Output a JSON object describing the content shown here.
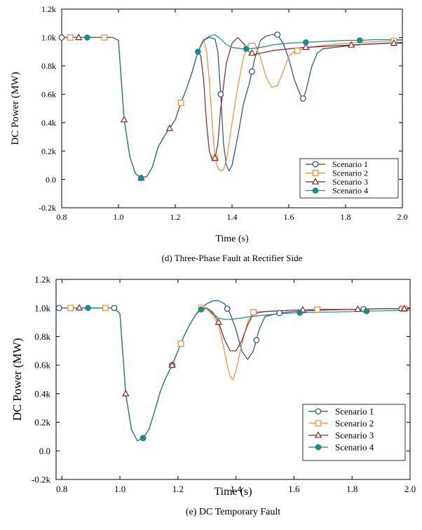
{
  "chart_data": [
    {
      "type": "line",
      "caption": "(d) Three-Phase Fault at Rectifier Side",
      "xlabel": "Time (s)",
      "ylabel": "DC Power (MW)",
      "xlim": [
        0.8,
        2.0
      ],
      "ylim": [
        -200,
        1200
      ],
      "x_ticks": [
        0.8,
        1.0,
        1.2,
        1.4,
        1.6,
        1.8,
        2.0
      ],
      "x_tick_labels": [
        "0.8",
        "1.0",
        "1.2",
        "1.4",
        "1.6",
        "1.8",
        "2.0"
      ],
      "y_ticks": [
        -200,
        0,
        200,
        400,
        600,
        800,
        1000,
        1200
      ],
      "y_tick_labels": [
        "-0.2k",
        "0.0",
        "0.2k",
        "0.4k",
        "0.6k",
        "0.8k",
        "1.0k",
        "1.2k"
      ],
      "grid": false,
      "legend_position": "bottom-right",
      "series": [
        {
          "name": "Scenario 1",
          "color": "#1f4e9c",
          "marker": "circle-open",
          "x": [
            0.8,
            0.98,
            1.0,
            1.02,
            1.04,
            1.06,
            1.08,
            1.1,
            1.12,
            1.14,
            1.16,
            1.18,
            1.2,
            1.22,
            1.24,
            1.26,
            1.28,
            1.3,
            1.32,
            1.34,
            1.35,
            1.36,
            1.37,
            1.38,
            1.39,
            1.4,
            1.42,
            1.44,
            1.46,
            1.48,
            1.5,
            1.52,
            1.54,
            1.56,
            1.58,
            1.6,
            1.62,
            1.64,
            1.65,
            1.66,
            1.68,
            1.7,
            1.72,
            1.76,
            1.8,
            1.85,
            1.9,
            1.95,
            2.0
          ],
          "y": [
            1000,
            1000,
            980,
            420,
            160,
            40,
            10,
            20,
            90,
            230,
            300,
            360,
            420,
            540,
            640,
            760,
            900,
            980,
            1000,
            990,
            900,
            600,
            250,
            100,
            60,
            100,
            300,
            530,
            670,
            850,
            980,
            1010,
            1020,
            1020,
            960,
            850,
            700,
            600,
            570,
            620,
            790,
            890,
            920,
            930,
            940,
            950,
            955,
            960,
            965
          ],
          "marker_x": [
            0.8,
            1.36,
            1.47,
            1.56,
            1.65,
            1.97
          ]
        },
        {
          "name": "Scenario 2",
          "color": "#f08a3c",
          "marker": "square-open",
          "x": [
            0.8,
            0.98,
            1.0,
            1.02,
            1.04,
            1.06,
            1.08,
            1.1,
            1.12,
            1.14,
            1.16,
            1.18,
            1.2,
            1.22,
            1.24,
            1.26,
            1.28,
            1.29,
            1.3,
            1.31,
            1.32,
            1.33,
            1.34,
            1.35,
            1.36,
            1.37,
            1.38,
            1.4,
            1.42,
            1.44,
            1.46,
            1.48,
            1.5,
            1.52,
            1.54,
            1.56,
            1.58,
            1.6,
            1.62,
            1.65,
            1.7,
            1.75,
            1.8,
            1.85,
            1.9,
            1.95,
            2.0
          ],
          "y": [
            1000,
            1000,
            980,
            420,
            160,
            40,
            10,
            20,
            90,
            230,
            300,
            360,
            420,
            540,
            640,
            760,
            900,
            950,
            990,
            900,
            700,
            400,
            150,
            80,
            60,
            70,
            130,
            400,
            650,
            860,
            960,
            960,
            860,
            720,
            650,
            660,
            760,
            870,
            900,
            920,
            940,
            950,
            960,
            965,
            970,
            975,
            980
          ],
          "marker_x": [
            0.83,
            0.95,
            1.22,
            1.34,
            1.63,
            1.97
          ]
        },
        {
          "name": "Scenario 3",
          "color": "#8b2323",
          "marker": "triangle-open",
          "x": [
            0.8,
            0.98,
            1.0,
            1.02,
            1.04,
            1.06,
            1.08,
            1.1,
            1.12,
            1.14,
            1.16,
            1.18,
            1.2,
            1.22,
            1.24,
            1.26,
            1.28,
            1.29,
            1.3,
            1.31,
            1.32,
            1.33,
            1.34,
            1.35,
            1.36,
            1.38,
            1.4,
            1.42,
            1.44,
            1.46,
            1.48,
            1.5,
            1.55,
            1.6,
            1.65,
            1.7,
            1.75,
            1.8,
            1.85,
            1.9,
            1.95,
            2.0
          ],
          "y": [
            1000,
            1000,
            980,
            420,
            160,
            40,
            10,
            20,
            90,
            230,
            300,
            360,
            420,
            540,
            640,
            760,
            900,
            870,
            700,
            400,
            200,
            140,
            150,
            250,
            500,
            820,
            960,
            1000,
            960,
            900,
            880,
            890,
            910,
            920,
            930,
            935,
            940,
            945,
            950,
            955,
            960,
            960
          ],
          "marker_x": [
            0.86,
            1.02,
            1.08,
            1.18,
            1.34,
            1.47,
            1.66,
            1.82,
            1.97
          ]
        },
        {
          "name": "Scenario 4",
          "color": "#1a8c8a",
          "marker": "circle-filled",
          "x": [
            0.8,
            0.98,
            1.0,
            1.02,
            1.04,
            1.06,
            1.08,
            1.1,
            1.12,
            1.14,
            1.16,
            1.18,
            1.2,
            1.22,
            1.24,
            1.26,
            1.28,
            1.3,
            1.32,
            1.34,
            1.36,
            1.38,
            1.4,
            1.42,
            1.44,
            1.46,
            1.5,
            1.55,
            1.6,
            1.65,
            1.7,
            1.75,
            1.8,
            1.85,
            1.9,
            1.95,
            2.0
          ],
          "y": [
            1000,
            1000,
            980,
            420,
            160,
            40,
            10,
            20,
            90,
            230,
            300,
            360,
            420,
            540,
            640,
            760,
            900,
            980,
            1010,
            1020,
            990,
            950,
            930,
            925,
            920,
            920,
            930,
            950,
            960,
            965,
            970,
            975,
            980,
            980,
            985,
            985,
            985
          ],
          "marker_x": [
            0.89,
            1.08,
            1.28,
            1.45,
            1.66,
            1.85
          ]
        }
      ]
    },
    {
      "type": "line",
      "caption": "(e) DC Temporary Fault",
      "xlabel": "Time (s)",
      "ylabel": "DC Power (MW)",
      "xlim": [
        0.78,
        2.0
      ],
      "ylim": [
        -200,
        1200
      ],
      "x_ticks": [
        0.8,
        1.0,
        1.2,
        1.4,
        1.6,
        1.8,
        2.0
      ],
      "x_tick_labels": [
        "0.8",
        "1.0",
        "1.2",
        "1.4",
        "1.6",
        "1.8",
        "2.0"
      ],
      "y_ticks": [
        -200,
        0,
        200,
        400,
        600,
        800,
        1000,
        1200
      ],
      "y_tick_labels": [
        "-0.2k",
        "0.0",
        "0.2k",
        "0.4k",
        "0.6k",
        "0.8k",
        "1.0k",
        "1.2k"
      ],
      "grid": false,
      "legend_position": "bottom-right",
      "series": [
        {
          "name": "Scenario 1",
          "color": "#1f4e9c",
          "marker": "circle-open",
          "x": [
            0.78,
            0.98,
            1.0,
            1.02,
            1.04,
            1.06,
            1.08,
            1.1,
            1.12,
            1.14,
            1.16,
            1.18,
            1.2,
            1.22,
            1.24,
            1.26,
            1.28,
            1.3,
            1.32,
            1.34,
            1.36,
            1.38,
            1.4,
            1.42,
            1.44,
            1.46,
            1.48,
            1.5,
            1.55,
            1.6,
            1.7,
            1.8,
            1.9,
            2.0
          ],
          "y": [
            1000,
            1000,
            960,
            400,
            150,
            70,
            90,
            150,
            280,
            420,
            520,
            600,
            700,
            800,
            880,
            950,
            1000,
            1030,
            1050,
            1050,
            1030,
            960,
            850,
            700,
            640,
            700,
            850,
            940,
            965,
            975,
            985,
            990,
            995,
            995
          ],
          "marker_x": [
            0.79,
            0.98,
            1.08,
            1.18,
            1.37,
            1.47,
            1.55,
            1.84,
            1.97
          ]
        },
        {
          "name": "Scenario 2",
          "color": "#f08a3c",
          "marker": "square-open",
          "x": [
            0.78,
            0.98,
            1.0,
            1.02,
            1.04,
            1.06,
            1.08,
            1.1,
            1.12,
            1.14,
            1.16,
            1.18,
            1.2,
            1.22,
            1.24,
            1.26,
            1.28,
            1.3,
            1.32,
            1.34,
            1.36,
            1.37,
            1.38,
            1.39,
            1.4,
            1.42,
            1.44,
            1.46,
            1.48,
            1.5,
            1.55,
            1.6,
            1.7,
            1.8,
            1.9,
            2.0
          ],
          "y": [
            1000,
            1000,
            960,
            400,
            150,
            70,
            90,
            150,
            280,
            420,
            520,
            600,
            700,
            800,
            880,
            950,
            1000,
            990,
            950,
            880,
            700,
            600,
            520,
            500,
            560,
            750,
            900,
            970,
            975,
            975,
            980,
            985,
            990,
            990,
            995,
            995
          ],
          "marker_x": [
            0.83,
            0.95,
            1.21,
            1.28,
            1.46,
            1.68,
            1.98
          ]
        },
        {
          "name": "Scenario 3",
          "color": "#8b2323",
          "marker": "triangle-open",
          "x": [
            0.78,
            0.98,
            1.0,
            1.02,
            1.04,
            1.06,
            1.08,
            1.1,
            1.12,
            1.14,
            1.16,
            1.18,
            1.2,
            1.22,
            1.24,
            1.26,
            1.28,
            1.3,
            1.32,
            1.34,
            1.36,
            1.38,
            1.4,
            1.42,
            1.44,
            1.46,
            1.5,
            1.55,
            1.6,
            1.7,
            1.8,
            1.9,
            2.0
          ],
          "y": [
            1000,
            1000,
            960,
            400,
            150,
            70,
            90,
            150,
            280,
            420,
            520,
            600,
            700,
            800,
            880,
            950,
            1000,
            1000,
            970,
            900,
            780,
            700,
            700,
            770,
            880,
            960,
            975,
            980,
            985,
            990,
            990,
            995,
            995
          ],
          "marker_x": [
            0.86,
            1.02,
            1.18,
            1.34,
            1.63,
            1.82,
            1.98
          ]
        },
        {
          "name": "Scenario 4",
          "color": "#1a8c8a",
          "marker": "circle-filled",
          "x": [
            0.78,
            0.98,
            1.0,
            1.02,
            1.04,
            1.06,
            1.08,
            1.1,
            1.12,
            1.14,
            1.16,
            1.18,
            1.2,
            1.22,
            1.24,
            1.26,
            1.28,
            1.3,
            1.32,
            1.34,
            1.36,
            1.38,
            1.4,
            1.42,
            1.45,
            1.5,
            1.55,
            1.6,
            1.7,
            1.8,
            1.9,
            2.0
          ],
          "y": [
            1000,
            1000,
            960,
            400,
            150,
            70,
            90,
            150,
            280,
            420,
            520,
            600,
            700,
            800,
            880,
            950,
            990,
            1000,
            960,
            930,
            920,
            920,
            925,
            930,
            940,
            950,
            960,
            965,
            970,
            975,
            980,
            985
          ],
          "marker_x": [
            0.89,
            1.08,
            1.28,
            1.62,
            1.85
          ]
        }
      ]
    }
  ]
}
